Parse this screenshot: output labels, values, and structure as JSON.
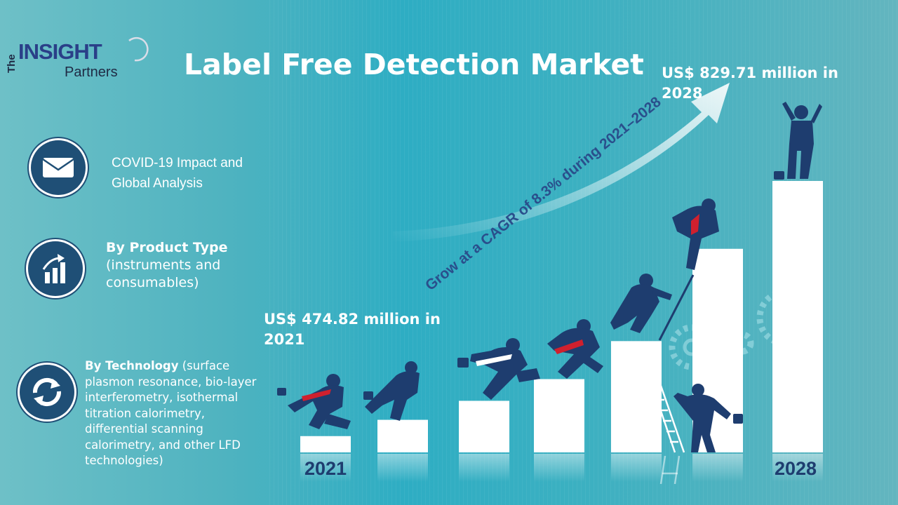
{
  "logo": {
    "word_the": "The",
    "word_insight": "INSIGHT",
    "word_partners": "Partners"
  },
  "title": "Label Free Detection Market",
  "segments": [
    {
      "icon": "envelope-icon",
      "title": "",
      "text": "COVID-19 Impact and Global Analysis"
    },
    {
      "icon": "growth-chart-icon",
      "title": "By Product Type",
      "text": "(instruments and consumables)"
    },
    {
      "icon": "cycle-arrows-icon",
      "title": "By Technology",
      "text": "(surface plasmon resonance, bio-layer interferometry, isothermal titration calorimetry, differential scanning calorimetry, and other LFD technologies)"
    }
  ],
  "market": {
    "start_value": "US$ 474.82 million in 2021",
    "end_value": "US$ 829.71 million in 2028",
    "cagr_text": "Grow at a CAGR of 8.3% during 2021–2028",
    "start_year": "2021",
    "end_year": "2028"
  },
  "colors": {
    "navy": "#1e3d6f",
    "accent_red": "#d0202e",
    "bar_white": "#ffffff",
    "icon_bg": "#1f4f76"
  },
  "bars": [
    0.06,
    0.12,
    0.19,
    0.27,
    0.41,
    0.75,
    1.0
  ]
}
